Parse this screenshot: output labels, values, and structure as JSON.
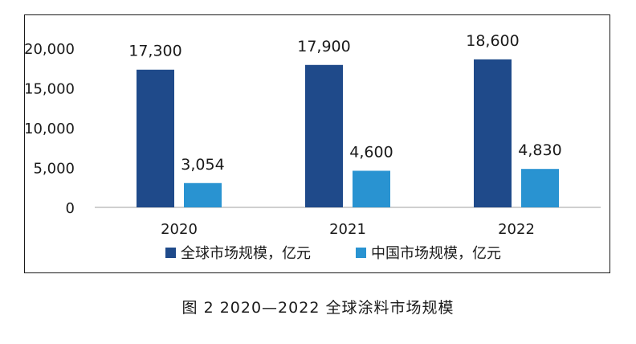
{
  "caption": "图 2 2020—2022 全球涂料市场规模",
  "chart_data": {
    "type": "bar",
    "categories": [
      "2020",
      "2021",
      "2022"
    ],
    "series": [
      {
        "name": "全球市场规模，亿元",
        "values": [
          17300,
          17900,
          18600
        ],
        "value_labels": [
          "17,300",
          "17,900",
          "18,600"
        ],
        "color": "#1f4a8a"
      },
      {
        "name": "中国市场规模，亿元",
        "values": [
          3054,
          4600,
          4830
        ],
        "value_labels": [
          "3,054",
          "4,600",
          "4,830"
        ],
        "color": "#2993d1"
      }
    ],
    "ylim": [
      0,
      20000
    ],
    "yticks": [
      0,
      5000,
      10000,
      15000,
      20000
    ],
    "ytick_labels": [
      "0",
      "5,000",
      "10,000",
      "15,000",
      "20,000"
    ],
    "grid": false,
    "legend_position": "bottom"
  }
}
